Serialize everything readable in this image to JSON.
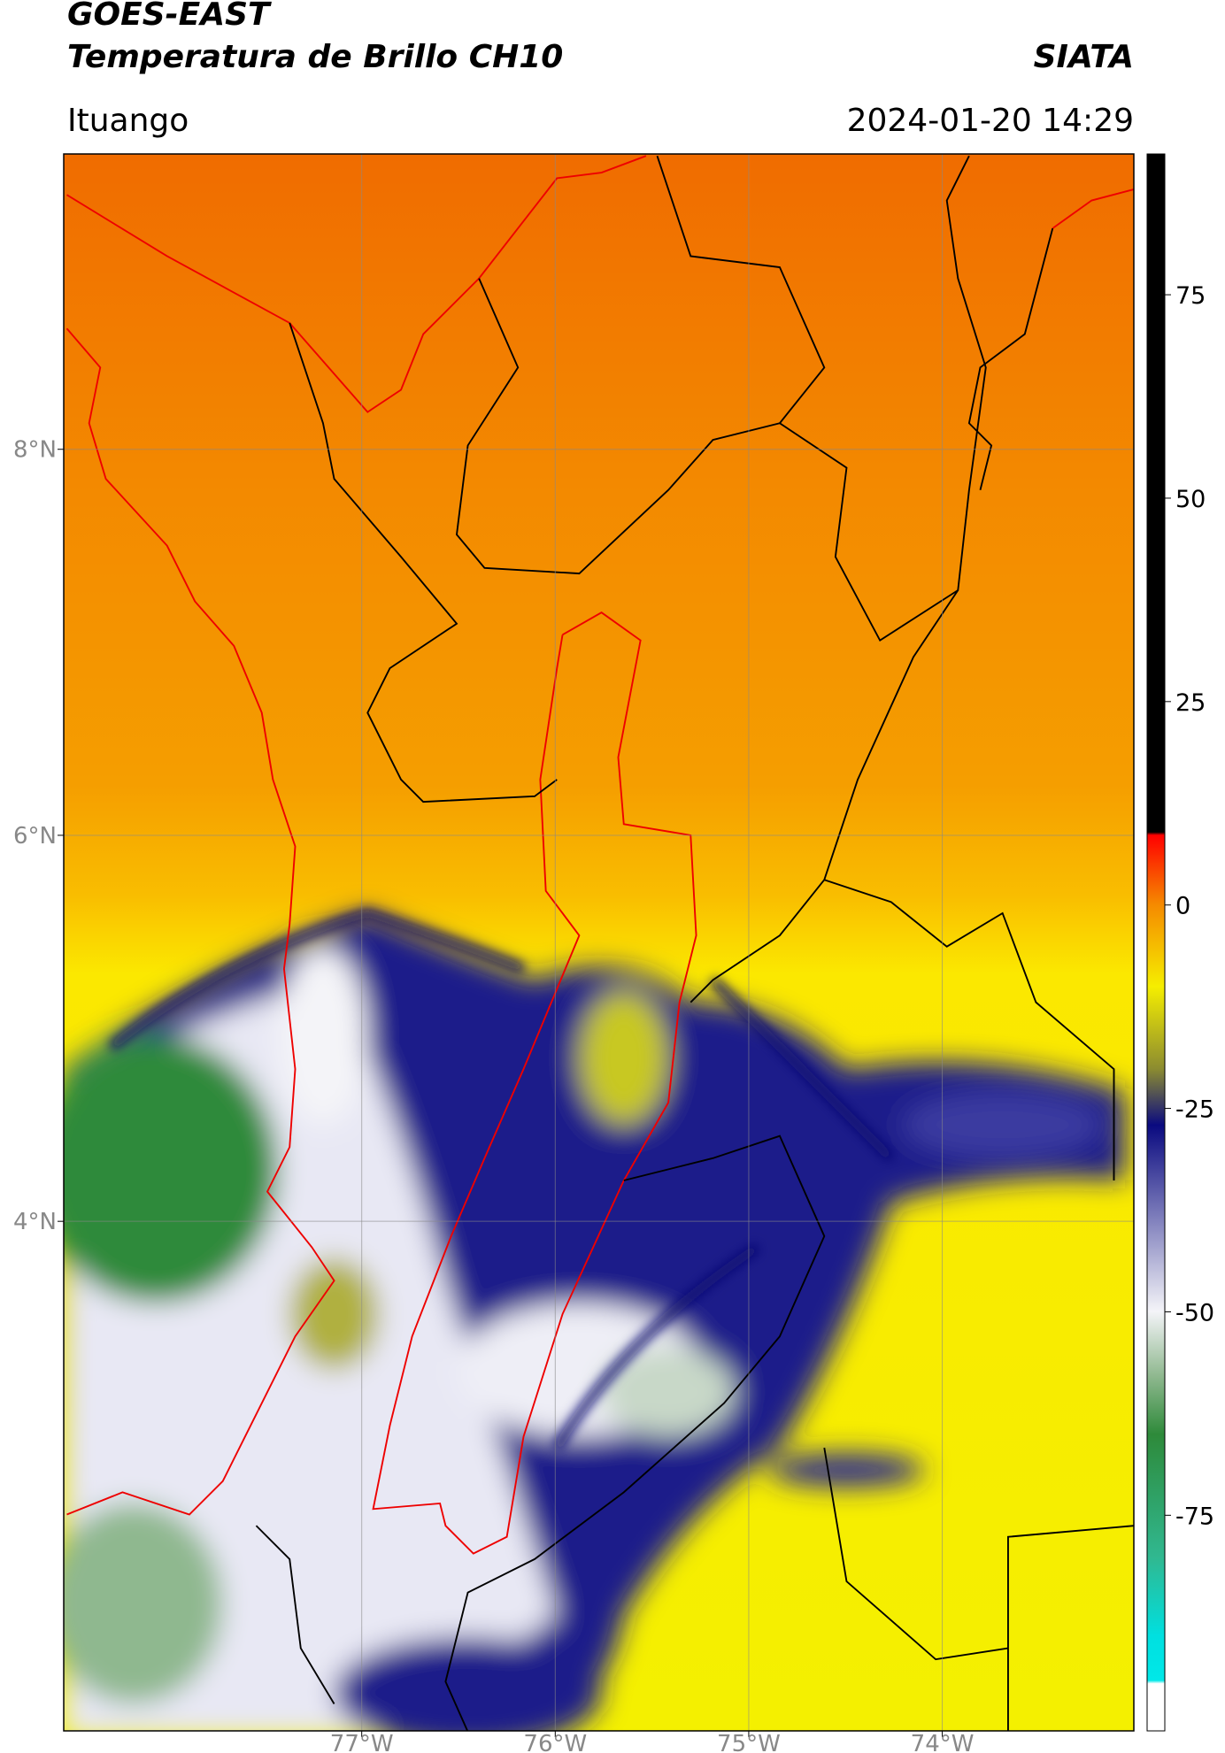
{
  "header": {
    "title": "GOES-EAST",
    "subtitle": "Temperatura de Brillo CH10",
    "source": "SIATA",
    "region": "Ituango",
    "timestamp": "2024-01-20 14:29"
  },
  "map": {
    "lonlim": [
      -78.54,
      -73.01
    ],
    "latlim": [
      1.36,
      9.53
    ],
    "grid": true,
    "lonticks": [
      {
        "value": -77,
        "label": "77°W"
      },
      {
        "value": -76,
        "label": "76°W"
      },
      {
        "value": -75,
        "label": "75°W"
      },
      {
        "value": -74,
        "label": "74°W"
      }
    ],
    "latticks": [
      {
        "value": 8,
        "label": "8°N"
      },
      {
        "value": 6,
        "label": "6°N"
      },
      {
        "value": 4,
        "label": "4°N"
      }
    ]
  },
  "colorbar": {
    "lim": [
      -101.5,
      92.3
    ],
    "ticks": [
      -75,
      -50,
      -25,
      0,
      25,
      50,
      75
    ]
  }
}
